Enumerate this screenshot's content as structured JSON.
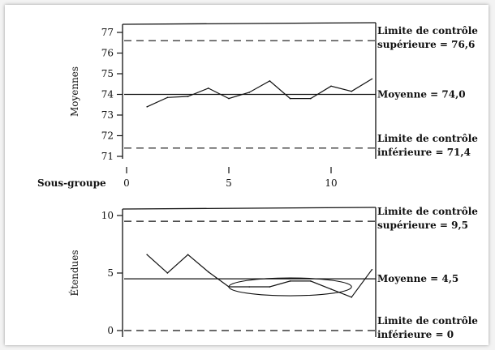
{
  "colors": {
    "ink": "#111111",
    "frame_bg": "#ffffff",
    "page_bg": "#f3f3f3"
  },
  "x_axis": {
    "label": "Sous-groupe",
    "ticks": [
      0,
      5,
      10
    ]
  },
  "chart_data": [
    {
      "type": "line",
      "ylabel": "Moyennes",
      "ylim": [
        71,
        77
      ],
      "yticks": [
        71,
        72,
        73,
        74,
        75,
        76,
        77
      ],
      "xlim": [
        0,
        12
      ],
      "series": [
        {
          "x": [
            1,
            2,
            3,
            4,
            5,
            6,
            7,
            8,
            9,
            10,
            11,
            12
          ],
          "values": [
            73.4,
            73.85,
            73.9,
            74.3,
            73.8,
            74.1,
            74.65,
            73.8,
            73.8,
            74.4,
            74.15,
            74.75
          ]
        }
      ],
      "reference_lines": [
        {
          "value": 76.6,
          "style": "dashed",
          "label_line1": "Limite de contrôle",
          "label_line2": "supérieure = 76,6"
        },
        {
          "value": 74.0,
          "style": "solid",
          "label_line1": "Moyenne = 74,0"
        },
        {
          "value": 71.4,
          "style": "dashed",
          "label_line1": "Limite de contrôle",
          "label_line2": "inférieure = 71,4"
        }
      ]
    },
    {
      "type": "line",
      "ylabel": "Étendues",
      "ylim": [
        0,
        10
      ],
      "yticks": [
        0,
        5,
        10
      ],
      "xlim": [
        0,
        12
      ],
      "series": [
        {
          "x": [
            1,
            2,
            3,
            4,
            5,
            6,
            7,
            8,
            9,
            10,
            11,
            12
          ],
          "values": [
            6.6,
            5.0,
            6.6,
            5.1,
            3.8,
            3.8,
            3.8,
            4.3,
            4.3,
            3.6,
            2.9,
            5.3
          ]
        }
      ],
      "reference_lines": [
        {
          "value": 9.5,
          "style": "dashed",
          "label_line1": "Limite de contrôle",
          "label_line2": "supérieure = 9,5"
        },
        {
          "value": 4.5,
          "style": "solid",
          "label_line1": "Moyenne = 4,5"
        },
        {
          "value": 0,
          "style": "dashed",
          "label_line1": "Limite de contrôle",
          "label_line2": "inférieure = 0"
        }
      ],
      "annotation": {
        "type": "ellipse",
        "x_range": [
          5,
          11
        ],
        "y_center": 3.8
      }
    }
  ]
}
